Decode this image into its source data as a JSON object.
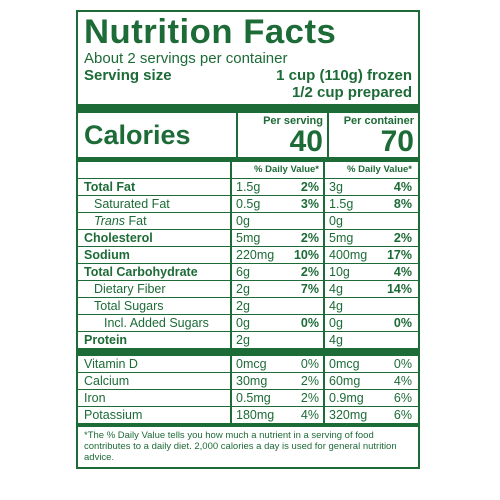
{
  "title": "Nutrition Facts",
  "servings_text": "About 2 servings per container",
  "serving_size_label": "Serving size",
  "serving_size_value_1": "1 cup (110g) frozen",
  "serving_size_value_2": "1/2 cup prepared",
  "calories_label": "Calories",
  "per_serving_label": "Per serving",
  "per_container_label": "Per container",
  "calories_per_serving": "40",
  "calories_per_container": "70",
  "dv_header": "% Daily Value*",
  "nutrients": [
    {
      "name": "Total Fat",
      "a1": "1.5g",
      "d1": "2%",
      "a2": "3g",
      "d2": "4%"
    },
    {
      "name": "Saturated Fat",
      "a1": "0.5g",
      "d1": "3%",
      "a2": "1.5g",
      "d2": "8%"
    },
    {
      "name": "Trans",
      "name_suffix": " Fat",
      "a1": "0g",
      "d1": "",
      "a2": "0g",
      "d2": ""
    },
    {
      "name": "Cholesterol",
      "a1": "5mg",
      "d1": "2%",
      "a2": "5mg",
      "d2": "2%"
    },
    {
      "name": "Sodium",
      "a1": "220mg",
      "d1": "10%",
      "a2": "400mg",
      "d2": "17%"
    },
    {
      "name": "Total Carbohydrate",
      "a1": "6g",
      "d1": "2%",
      "a2": "10g",
      "d2": "4%"
    },
    {
      "name": "Dietary Fiber",
      "a1": "2g",
      "d1": "7%",
      "a2": "4g",
      "d2": "14%"
    },
    {
      "name": "Total Sugars",
      "a1": "2g",
      "d1": "",
      "a2": "4g",
      "d2": ""
    },
    {
      "name": "Incl. Added Sugars",
      "a1": "0g",
      "d1": "0%",
      "a2": "0g",
      "d2": "0%"
    },
    {
      "name": "Protein",
      "a1": "2g",
      "d1": "",
      "a2": "4g",
      "d2": ""
    }
  ],
  "vitamins": [
    {
      "name": "Vitamin D",
      "a1": "0mcg",
      "d1": "0%",
      "a2": "0mcg",
      "d2": "0%"
    },
    {
      "name": "Calcium",
      "a1": "30mg",
      "d1": "2%",
      "a2": "60mg",
      "d2": "4%"
    },
    {
      "name": "Iron",
      "a1": "0.5mg",
      "d1": "2%",
      "a2": "0.9mg",
      "d2": "6%"
    },
    {
      "name": "Potassium",
      "a1": "180mg",
      "d1": "4%",
      "a2": "320mg",
      "d2": "6%"
    }
  ],
  "footnote": "*The % Daily Value tells you how much a nutrient in a serving of food contributes to a daily diet. 2,000 calories a day is used for general nutrition advice.",
  "colors": {
    "ink": "#1d6b37",
    "background": "#ffffff"
  }
}
